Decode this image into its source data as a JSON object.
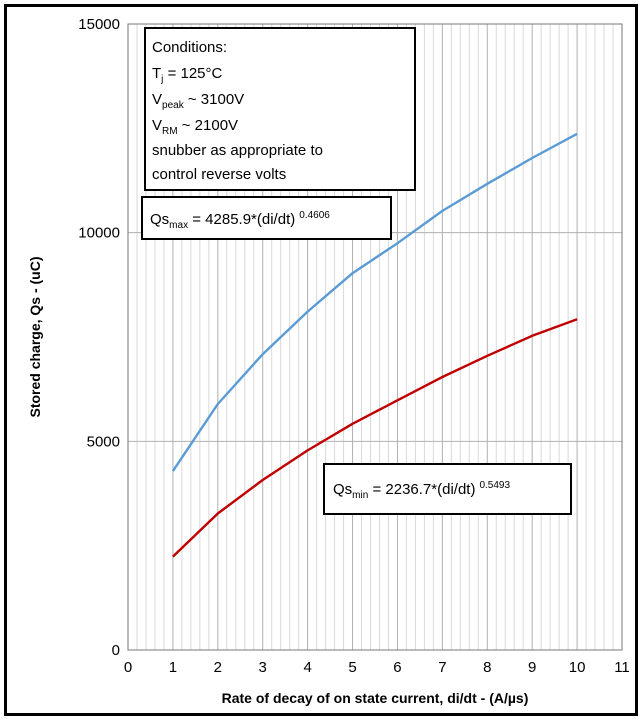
{
  "chart_data": {
    "type": "line",
    "xlabel": "Rate of decay of on state current, di/dt -  (A/µs)",
    "ylabel": "Stored charge, Qs - (uC)",
    "xlim": [
      0,
      11
    ],
    "ylim": [
      0,
      15000
    ],
    "x_ticks": [
      "0",
      "1",
      "2",
      "3",
      "4",
      "5",
      "6",
      "7",
      "8",
      "9",
      "10",
      "11"
    ],
    "y_ticks": [
      "0",
      "5000",
      "10000",
      "15000"
    ],
    "grid": true,
    "x": [
      1,
      2,
      3,
      4,
      5,
      6,
      7,
      8,
      9,
      10
    ],
    "series": [
      {
        "color": "#5b9bd5",
        "values": [
          4286,
          5895,
          7087,
          8109,
          9029,
          9748,
          10521,
          11171,
          11788,
          12370
        ]
      },
      {
        "color": "#c00000",
        "values": [
          2237,
          3270,
          4074,
          4782,
          5419,
          5984,
          6542,
          7050,
          7528,
          7924
        ]
      }
    ],
    "conditions": {
      "title": "Conditions:",
      "tj_base": "T",
      "tj_sub": "j",
      "tj_value": " = 125°C",
      "vpeak_base": "V",
      "vpeak_sub": "peak",
      "vpeak_value": " ~ 3100V",
      "vrm_base": "V",
      "vrm_sub": "RM",
      "vrm_value": " ~ 2100V",
      "line4": "snubber as appropriate to",
      "line5": "control reverse volts"
    },
    "equation_max": {
      "base": "Qs",
      "sub": "max",
      "body": " = 4285.9*(di/dt)",
      "exp": "0.4606"
    },
    "equation_min": {
      "base": "Qs",
      "sub": "min",
      "body": " = 2236.7*(di/dt)",
      "exp": "0.5493"
    }
  }
}
